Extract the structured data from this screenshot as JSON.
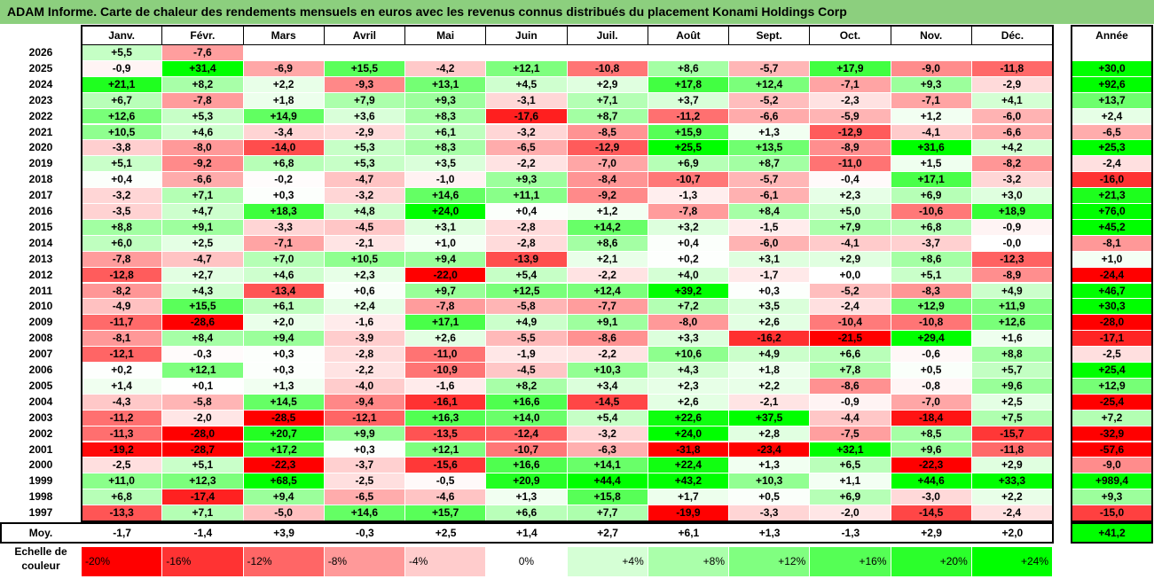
{
  "title": "ADAM Informe. Carte de chaleur des rendements mensuels en euros avec les revenus connus distribués du placement Konami Holdings Corp",
  "chart_data": {
    "type": "heatmap",
    "months": [
      "Janv.",
      "Févr.",
      "Mars",
      "Avril",
      "Mai",
      "Juin",
      "Juil.",
      "Août",
      "Sept.",
      "Oct.",
      "Nov.",
      "Déc."
    ],
    "year_label": "Année",
    "avg_label": "Moy.",
    "rows": [
      {
        "year": "2026",
        "values": [
          "+5,5",
          "-7,6",
          "",
          "",
          "",
          "",
          "",
          "",
          "",
          "",
          "",
          ""
        ],
        "annual": ""
      },
      {
        "year": "2025",
        "values": [
          "-0,9",
          "+31,4",
          "-6,9",
          "+15,5",
          "-4,2",
          "+12,1",
          "-10,8",
          "+8,6",
          "-5,7",
          "+17,9",
          "-9,0",
          "-11,8"
        ],
        "annual": "+30,0"
      },
      {
        "year": "2024",
        "values": [
          "+21,1",
          "+8,2",
          "+2,2",
          "-9,3",
          "+13,1",
          "+4,5",
          "+2,9",
          "+17,8",
          "+12,4",
          "-7,1",
          "+9,3",
          "-2,9"
        ],
        "annual": "+92,6"
      },
      {
        "year": "2023",
        "values": [
          "+6,7",
          "-7,8",
          "+1,8",
          "+7,9",
          "+9,3",
          "-3,1",
          "+7,1",
          "+3,7",
          "-5,2",
          "-2,3",
          "-7,1",
          "+4,1"
        ],
        "annual": "+13,7"
      },
      {
        "year": "2022",
        "values": [
          "+12,6",
          "+5,3",
          "+14,9",
          "+3,6",
          "+8,3",
          "-17,6",
          "+8,7",
          "-11,2",
          "-6,6",
          "-5,9",
          "+1,2",
          "-6,0"
        ],
        "annual": "+2,4"
      },
      {
        "year": "2021",
        "values": [
          "+10,5",
          "+4,6",
          "-3,4",
          "-2,9",
          "+6,1",
          "-3,2",
          "-8,5",
          "+15,9",
          "+1,3",
          "-12,9",
          "-4,1",
          "-6,6"
        ],
        "annual": "-6,5"
      },
      {
        "year": "2020",
        "values": [
          "-3,8",
          "-8,0",
          "-14,0",
          "+5,3",
          "+8,3",
          "-6,5",
          "-12,9",
          "+25,5",
          "+13,5",
          "-8,9",
          "+31,6",
          "+4,2"
        ],
        "annual": "+25,3"
      },
      {
        "year": "2019",
        "values": [
          "+5,1",
          "-9,2",
          "+6,8",
          "+5,3",
          "+3,5",
          "-2,2",
          "-7,0",
          "+6,9",
          "+8,7",
          "-11,0",
          "+1,5",
          "-8,2"
        ],
        "annual": "-2,4"
      },
      {
        "year": "2018",
        "values": [
          "+0,4",
          "-6,6",
          "-0,2",
          "-4,7",
          "-1,0",
          "+9,3",
          "-8,4",
          "-10,7",
          "-5,7",
          "-0,4",
          "+17,1",
          "-3,2"
        ],
        "annual": "-16,0"
      },
      {
        "year": "2017",
        "values": [
          "-3,2",
          "+7,1",
          "+0,3",
          "-3,2",
          "+14,6",
          "+11,1",
          "-9,2",
          "-1,3",
          "-6,1",
          "+2,3",
          "+6,9",
          "+3,0"
        ],
        "annual": "+21,3"
      },
      {
        "year": "2016",
        "values": [
          "-3,5",
          "+4,7",
          "+18,3",
          "+4,8",
          "+24,0",
          "+0,4",
          "+1,2",
          "-7,8",
          "+8,4",
          "+5,0",
          "-10,6",
          "+18,9"
        ],
        "annual": "+76,0"
      },
      {
        "year": "2015",
        "values": [
          "+8,8",
          "+9,1",
          "-3,3",
          "-4,5",
          "+3,1",
          "-2,8",
          "+14,2",
          "+3,2",
          "-1,5",
          "+7,9",
          "+6,8",
          "-0,9"
        ],
        "annual": "+45,2"
      },
      {
        "year": "2014",
        "values": [
          "+6,0",
          "+2,5",
          "-7,1",
          "-2,1",
          "+1,0",
          "-2,8",
          "+8,6",
          "+0,4",
          "-6,0",
          "-4,1",
          "-3,7",
          "-0,0"
        ],
        "annual": "-8,1"
      },
      {
        "year": "2013",
        "values": [
          "-7,8",
          "-4,7",
          "+7,0",
          "+10,5",
          "+9,4",
          "-13,9",
          "+2,1",
          "+0,2",
          "+3,1",
          "+2,9",
          "+8,6",
          "-12,3"
        ],
        "annual": "+1,0"
      },
      {
        "year": "2012",
        "values": [
          "-12,8",
          "+2,7",
          "+4,6",
          "+2,3",
          "-22,0",
          "+5,4",
          "-2,2",
          "+4,0",
          "-1,7",
          "+0,0",
          "+5,1",
          "-8,9"
        ],
        "annual": "-24,4"
      },
      {
        "year": "2011",
        "values": [
          "-8,2",
          "+4,3",
          "-13,4",
          "+0,6",
          "+9,7",
          "+12,5",
          "+12,4",
          "+39,2",
          "+0,3",
          "-5,2",
          "-8,3",
          "+4,9"
        ],
        "annual": "+46,7"
      },
      {
        "year": "2010",
        "values": [
          "-4,9",
          "+15,5",
          "+6,1",
          "+2,4",
          "-7,8",
          "-5,8",
          "-7,7",
          "+7,2",
          "+3,5",
          "-2,4",
          "+12,9",
          "+11,9"
        ],
        "annual": "+30,3"
      },
      {
        "year": "2009",
        "values": [
          "-11,7",
          "-28,6",
          "+2,0",
          "-1,6",
          "+17,1",
          "+4,9",
          "+9,1",
          "-8,0",
          "+2,6",
          "-10,4",
          "-10,8",
          "+12,6"
        ],
        "annual": "-28,0"
      },
      {
        "year": "2008",
        "values": [
          "-8,1",
          "+8,4",
          "+9,4",
          "-3,9",
          "+2,6",
          "-5,5",
          "-8,6",
          "+3,3",
          "-16,2",
          "-21,5",
          "+29,4",
          "+1,6"
        ],
        "annual": "-17,1"
      },
      {
        "year": "2007",
        "values": [
          "-12,1",
          "-0,3",
          "+0,3",
          "-2,8",
          "-11,0",
          "-1,9",
          "-2,2",
          "+10,6",
          "+4,9",
          "+6,6",
          "-0,6",
          "+8,8"
        ],
        "annual": "-2,5"
      },
      {
        "year": "2006",
        "values": [
          "+0,2",
          "+12,1",
          "+0,3",
          "-2,2",
          "-10,9",
          "-4,5",
          "+10,3",
          "+4,3",
          "+1,8",
          "+7,8",
          "+0,5",
          "+5,7"
        ],
        "annual": "+25,4"
      },
      {
        "year": "2005",
        "values": [
          "+1,4",
          "+0,1",
          "+1,3",
          "-4,0",
          "-1,6",
          "+8,2",
          "+3,4",
          "+2,3",
          "+2,2",
          "-8,6",
          "-0,8",
          "+9,6"
        ],
        "annual": "+12,9"
      },
      {
        "year": "2004",
        "values": [
          "-4,3",
          "-5,8",
          "+14,5",
          "-9,4",
          "-16,1",
          "+16,6",
          "-14,5",
          "+2,6",
          "-2,1",
          "-0,9",
          "-7,0",
          "+2,5"
        ],
        "annual": "-25,4"
      },
      {
        "year": "2003",
        "values": [
          "-11,2",
          "-2,0",
          "-28,5",
          "-12,1",
          "+16,3",
          "+14,0",
          "+5,4",
          "+22,6",
          "+37,5",
          "-4,4",
          "-18,4",
          "+7,5"
        ],
        "annual": "+7,2"
      },
      {
        "year": "2002",
        "values": [
          "-11,3",
          "-28,0",
          "+20,7",
          "+9,9",
          "-13,5",
          "-12,4",
          "-3,2",
          "+24,0",
          "+2,8",
          "-7,5",
          "+8,5",
          "-15,7"
        ],
        "annual": "-32,9"
      },
      {
        "year": "2001",
        "values": [
          "-19,2",
          "-28,7",
          "+17,2",
          "+0,3",
          "+12,1",
          "-10,7",
          "-6,3",
          "-31,8",
          "-23,4",
          "+32,1",
          "+9,6",
          "-11,8"
        ],
        "annual": "-57,6"
      },
      {
        "year": "2000",
        "values": [
          "-2,5",
          "+5,1",
          "-22,3",
          "-3,7",
          "-15,6",
          "+16,6",
          "+14,1",
          "+22,4",
          "+1,3",
          "+6,5",
          "-22,3",
          "+2,9"
        ],
        "annual": "-9,0"
      },
      {
        "year": "1999",
        "values": [
          "+11,0",
          "+12,3",
          "+68,5",
          "-2,5",
          "-0,5",
          "+20,9",
          "+44,4",
          "+43,2",
          "+10,3",
          "+1,1",
          "+44,6",
          "+33,3"
        ],
        "annual": "+989,4"
      },
      {
        "year": "1998",
        "values": [
          "+6,8",
          "-17,4",
          "+9,4",
          "-6,5",
          "-4,6",
          "+1,3",
          "+15,8",
          "+1,7",
          "+0,5",
          "+6,9",
          "-3,0",
          "+2,2"
        ],
        "annual": "+9,3"
      },
      {
        "year": "1997",
        "values": [
          "-13,3",
          "+7,1",
          "-5,0",
          "+14,6",
          "+15,7",
          "+6,6",
          "+7,7",
          "-19,9",
          "-3,3",
          "-2,0",
          "-14,5",
          "-2,4"
        ],
        "annual": "-15,0"
      }
    ],
    "average": {
      "values": [
        "-1,7",
        "-1,4",
        "+3,9",
        "-0,3",
        "+2,5",
        "+1,4",
        "+2,7",
        "+6,1",
        "+1,3",
        "-1,3",
        "+2,9",
        "+2,0"
      ],
      "annual": "+41,2"
    },
    "scale": {
      "label_line1": "Echelle de",
      "label_line2": "couleur",
      "items": [
        "-20%",
        "-16%",
        "-12%",
        "-8%",
        "-4%",
        "0%",
        "+4%",
        "+8%",
        "+12%",
        "+16%",
        "+20%",
        "+24%"
      ],
      "values": [
        -20,
        -16,
        -12,
        -8,
        -4,
        0,
        4,
        8,
        12,
        16,
        20,
        24
      ]
    },
    "colors": {
      "negative_max": "#ff0000",
      "neutral": "#ffffff",
      "positive_max": "#00ff00",
      "title_bar": "#8ccf7e"
    }
  }
}
